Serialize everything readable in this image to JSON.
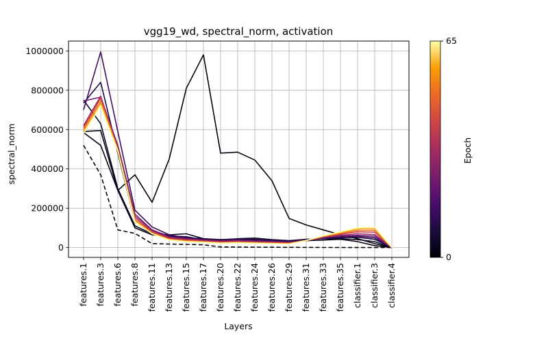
{
  "chart_data": {
    "type": "line",
    "title": "vgg19_wd, spectral_norm, activation",
    "xlabel": "Layers",
    "ylabel": "spectral_norm",
    "categories": [
      "features.1",
      "features.3",
      "features.6",
      "features.8",
      "features.11",
      "features.13",
      "features.15",
      "features.17",
      "features.20",
      "features.22",
      "features.24",
      "features.26",
      "features.29",
      "features.31",
      "features.33",
      "features.35",
      "classifier.1",
      "classifier.3",
      "classifier.4"
    ],
    "yticks": [
      0,
      200000,
      400000,
      600000,
      800000,
      1000000
    ],
    "ytick_labels": [
      "0",
      "200000",
      "400000",
      "600000",
      "800000",
      "1000000"
    ],
    "ylim": [
      -50000,
      1050000
    ],
    "grid": true,
    "colormap": "inferno",
    "colorbar": {
      "label": "Epoch",
      "min": 0,
      "max": 65,
      "tick_labels": [
        "0",
        "65"
      ]
    },
    "series": [
      {
        "epoch": 0,
        "style": "dashed",
        "values": [
          520000,
          370000,
          90000,
          72000,
          20000,
          18000,
          16000,
          14000,
          3000,
          2500,
          2000,
          1500,
          1000,
          800,
          500,
          400,
          300,
          200,
          100
        ]
      },
      {
        "epoch": 1,
        "values": [
          590000,
          595000,
          290000,
          370000,
          230000,
          450000,
          810000,
          980000,
          480000,
          485000,
          445000,
          340000,
          148000,
          115000,
          90000,
          65000,
          45000,
          20000,
          0
        ]
      },
      {
        "epoch": 2,
        "values": [
          585000,
          520000,
          290000,
          100000,
          65000,
          55000,
          50000,
          45000,
          40000,
          42000,
          40000,
          35000,
          30000,
          35000,
          38000,
          42000,
          30000,
          10000,
          0
        ]
      },
      {
        "epoch": 4,
        "values": [
          750000,
          630000,
          300000,
          110000,
          70000,
          65000,
          70000,
          45000,
          38000,
          45000,
          48000,
          40000,
          35000,
          42000,
          45000,
          45000,
          40000,
          30000,
          0
        ]
      },
      {
        "epoch": 8,
        "values": [
          735000,
          840000,
          480000,
          130000,
          85000,
          60000,
          55000,
          40000,
          40000,
          44000,
          42000,
          38000,
          34000,
          40000,
          46000,
          50000,
          52000,
          42000,
          0
        ]
      },
      {
        "epoch": 14,
        "values": [
          700000,
          995000,
          590000,
          190000,
          105000,
          65000,
          50000,
          42000,
          37000,
          40000,
          38000,
          35000,
          30000,
          38000,
          48000,
          55000,
          58000,
          50000,
          0
        ]
      },
      {
        "epoch": 22,
        "values": [
          745000,
          765000,
          520000,
          170000,
          90000,
          55000,
          45000,
          38000,
          33000,
          36000,
          33000,
          30000,
          27000,
          35000,
          50000,
          58000,
          62000,
          58000,
          0
        ]
      },
      {
        "epoch": 30,
        "values": [
          620000,
          770000,
          500000,
          160000,
          85000,
          50000,
          42000,
          35000,
          30000,
          33000,
          30000,
          28000,
          25000,
          36000,
          52000,
          62000,
          70000,
          66000,
          0
        ]
      },
      {
        "epoch": 40,
        "values": [
          610000,
          760000,
          505000,
          150000,
          80000,
          45000,
          38000,
          32000,
          28000,
          30000,
          27000,
          25000,
          23000,
          36000,
          55000,
          68000,
          80000,
          78000,
          0
        ]
      },
      {
        "epoch": 50,
        "values": [
          600000,
          745000,
          500000,
          140000,
          75000,
          42000,
          34000,
          30000,
          25000,
          27000,
          25000,
          22000,
          20000,
          36000,
          57000,
          73000,
          88000,
          88000,
          0
        ]
      },
      {
        "epoch": 58,
        "values": [
          590000,
          735000,
          495000,
          135000,
          72000,
          40000,
          32000,
          28000,
          23000,
          25000,
          23000,
          21000,
          19000,
          36000,
          58000,
          76000,
          95000,
          97000,
          0
        ]
      },
      {
        "epoch": 65,
        "values": [
          580000,
          720000,
          490000,
          130000,
          70000,
          38000,
          30000,
          27000,
          22000,
          24000,
          22000,
          20000,
          18000,
          36000,
          60000,
          80000,
          100000,
          103000,
          0
        ]
      }
    ]
  }
}
